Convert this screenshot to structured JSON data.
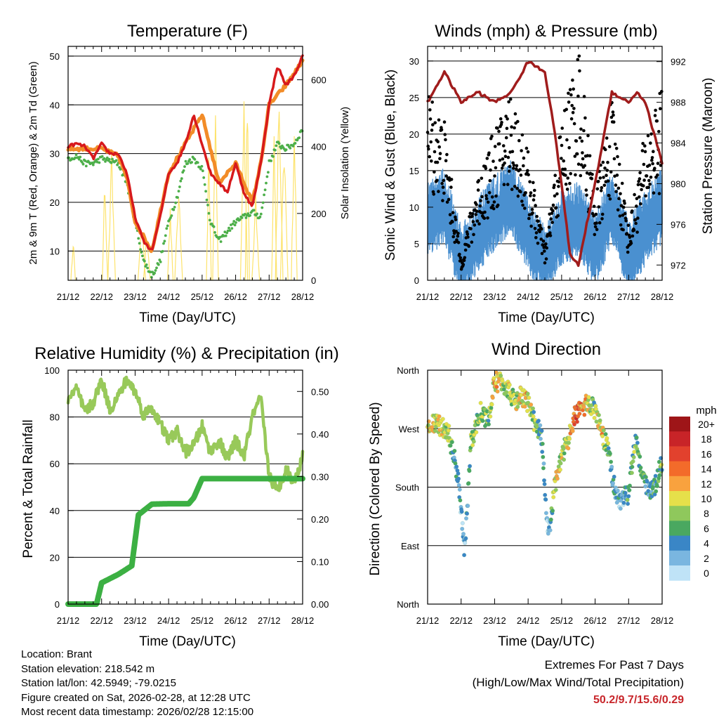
{
  "panels": {
    "temperature": {
      "title": "Temperature (F)",
      "ylabel_left": "2m & 9m T (Red, Orange) & 2m Td (Green)",
      "ylabel_right": "Solar Insolation (Yellow)",
      "xlabel": "Time (Day/UTC)"
    },
    "winds": {
      "title": "Winds (mph) & Pressure (mb)",
      "ylabel_left": "Sonic Wind & Gust (Blue, Black)",
      "ylabel_right": "Station Pressure (Maroon)",
      "xlabel": "Time (Day/UTC)"
    },
    "humidity": {
      "title": "Relative Humidity (%) & Precipitation (in)",
      "ylabel_left": "Percent & Total Rainfall",
      "xlabel": "Time (Day/UTC)"
    },
    "direction": {
      "title": "Wind Direction",
      "ylabel_left": "Direction (Colored By Speed)",
      "xlabel": "Time (Day/UTC)",
      "legend_title": "mph"
    }
  },
  "chart_data": [
    {
      "type": "line",
      "title": "Temperature (F)",
      "x_ticks": [
        "21/12",
        "22/12",
        "23/12",
        "24/12",
        "25/12",
        "26/12",
        "27/12",
        "28/12"
      ],
      "ylim": [
        4,
        52
      ],
      "y_ticks": [
        10,
        20,
        30,
        40,
        50
      ],
      "y2lim": [
        0,
        700
      ],
      "y2_ticks": [
        0,
        200,
        400,
        600
      ],
      "series": [
        {
          "name": "2m T",
          "color": "#d7191c",
          "days": [
            0,
            0.25,
            0.5,
            0.75,
            1,
            1.25,
            1.5,
            1.75,
            2,
            2.25,
            2.5,
            2.75,
            3,
            3.25,
            3.5,
            3.75,
            4,
            4.25,
            4.5,
            4.75,
            5,
            5.25,
            5.5,
            5.75,
            6,
            6.25,
            6.5,
            6.75,
            7
          ],
          "values": [
            31.5,
            32,
            31.5,
            29,
            32,
            30,
            30,
            26,
            17,
            12,
            10,
            17,
            26,
            28,
            32,
            38,
            32,
            26,
            24,
            22,
            28,
            22,
            19,
            28,
            40,
            48,
            44,
            46,
            50
          ]
        },
        {
          "name": "9m T",
          "color": "#f28c28",
          "days": [
            0,
            0.5,
            1,
            1.5,
            1.75,
            2,
            2.5,
            3,
            3.5,
            4,
            4.5,
            5,
            5.5,
            5.75,
            6,
            6.5,
            7
          ],
          "values": [
            31,
            31,
            31,
            29.5,
            25,
            16,
            10,
            26,
            32,
            38,
            24,
            28,
            20,
            28,
            40,
            44,
            49
          ]
        },
        {
          "name": "2m Td",
          "color": "#4daf4a",
          "days": [
            0,
            0.25,
            0.5,
            0.75,
            1,
            1.25,
            1.5,
            1.75,
            2,
            2.25,
            2.5,
            2.75,
            3,
            3.25,
            3.5,
            3.75,
            4,
            4.25,
            4.5,
            4.75,
            5,
            5.25,
            5.5,
            5.75,
            6,
            6.25,
            6.5,
            6.75,
            7
          ],
          "values": [
            29,
            29.5,
            28,
            28,
            29,
            28.5,
            28,
            24,
            16,
            8,
            5,
            8,
            16,
            21,
            28,
            29,
            27,
            16,
            12,
            14,
            16,
            17,
            18,
            17,
            28,
            32,
            31,
            32,
            35
          ]
        },
        {
          "name": "Solar Insolation",
          "color": "#fde36c",
          "axis": "right",
          "days": [
            0.2,
            0.7,
            1.3,
            1.8,
            2.3,
            2.8,
            3.3,
            3.8,
            4.3,
            4.8,
            5.3,
            5.8,
            6.3,
            6.8
          ],
          "values": [
            150,
            0,
            380,
            0,
            200,
            0,
            310,
            0,
            490,
            0,
            630,
            0,
            520,
            0
          ]
        }
      ]
    },
    {
      "type": "scatter",
      "title": "Winds (mph) & Pressure (mb)",
      "x_ticks": [
        "21/12",
        "22/12",
        "23/12",
        "24/12",
        "25/12",
        "26/12",
        "27/12",
        "28/12"
      ],
      "ylim": [
        0,
        32
      ],
      "y_ticks": [
        0,
        5,
        10,
        15,
        20,
        25,
        30
      ],
      "y2lim": [
        970.5,
        993.5
      ],
      "y2_ticks": [
        972,
        976,
        980,
        984,
        988,
        992
      ],
      "series": [
        {
          "name": "Sonic Wind",
          "color": "#4a90d0",
          "days": [
            0,
            0.5,
            1,
            1.5,
            2,
            2.5,
            3,
            3.5,
            4,
            4.5,
            5,
            5.5,
            6,
            6.5,
            7
          ],
          "values": [
            9,
            11,
            3,
            7,
            10,
            12,
            7,
            3,
            8,
            9,
            5,
            11,
            4,
            8,
            11
          ]
        },
        {
          "name": "Gust",
          "color": "#000000",
          "days": [
            0,
            0.5,
            1,
            1.5,
            2,
            2.5,
            3,
            3.5,
            4,
            4.5,
            5,
            5.5,
            6,
            6.5,
            7
          ],
          "values": [
            18,
            15,
            2,
            10,
            14,
            18,
            12,
            3,
            15,
            22,
            8,
            17,
            5,
            14,
            18
          ]
        },
        {
          "name": "Station Pressure",
          "color": "#a01c1c",
          "axis": "right",
          "days": [
            0,
            0.5,
            1,
            1.5,
            2,
            2.5,
            3,
            3.5,
            3.75,
            4,
            4.25,
            4.5,
            5,
            5.5,
            6,
            6.25,
            6.5,
            7
          ],
          "values": [
            988,
            991,
            988,
            989,
            988,
            989,
            992,
            991,
            986,
            980,
            973,
            972,
            980,
            989,
            988,
            989,
            988,
            982
          ]
        }
      ]
    },
    {
      "type": "line",
      "title": "Relative Humidity (%) & Precipitation (in)",
      "x_ticks": [
        "21/12",
        "22/12",
        "23/12",
        "24/12",
        "25/12",
        "26/12",
        "27/12",
        "28/12"
      ],
      "ylim": [
        0,
        100
      ],
      "y_ticks": [
        0,
        20,
        40,
        60,
        80,
        100
      ],
      "y2lim": [
        0,
        0.55
      ],
      "y2_ticks": [
        "0.00",
        "0.10",
        "0.20",
        "0.30",
        "0.40",
        "0.50"
      ],
      "series": [
        {
          "name": "Relative Humidity",
          "color": "#98c95a",
          "days": [
            0,
            0.25,
            0.5,
            0.75,
            1,
            1.25,
            1.5,
            1.75,
            2,
            2.25,
            2.5,
            2.75,
            3,
            3.25,
            3.5,
            3.75,
            4,
            4.25,
            4.5,
            4.75,
            5,
            5.25,
            5.5,
            5.75,
            6,
            6.25,
            6.5,
            6.75,
            7
          ],
          "values": [
            88,
            92,
            82,
            86,
            96,
            83,
            89,
            96,
            91,
            81,
            84,
            77,
            70,
            74,
            65,
            68,
            76,
            65,
            70,
            62,
            70,
            63,
            80,
            88,
            55,
            48,
            58,
            52,
            63
          ]
        },
        {
          "name": "Total Precipitation",
          "color": "#3cb043",
          "axis": "right",
          "days": [
            0,
            0.85,
            1,
            1.5,
            1.9,
            2.1,
            2.5,
            3,
            3.6,
            3.75,
            4,
            4.5,
            5,
            5.5,
            6,
            7
          ],
          "values": [
            0,
            0,
            0.05,
            0.07,
            0.09,
            0.21,
            0.235,
            0.236,
            0.236,
            0.25,
            0.295,
            0.295,
            0.295,
            0.295,
            0.295,
            0.295
          ]
        }
      ]
    },
    {
      "type": "scatter",
      "title": "Wind Direction",
      "x_ticks": [
        "21/12",
        "22/12",
        "23/12",
        "24/12",
        "25/12",
        "26/12",
        "27/12",
        "28/12"
      ],
      "y_categories": [
        "North",
        "East",
        "South",
        "West",
        "North"
      ],
      "ylim_deg": [
        0,
        360
      ],
      "legend": {
        "title": "mph",
        "labels": [
          "20+",
          "18",
          "16",
          "14",
          "12",
          "10",
          "8",
          "6",
          "4",
          "2",
          "0"
        ],
        "colors": [
          "#9e1518",
          "#c82428",
          "#e2412d",
          "#f36b2a",
          "#f9a23e",
          "#e6e04a",
          "#8fc85c",
          "#4aa860",
          "#3a86c6",
          "#7ab6e0",
          "#bfe3f7"
        ]
      },
      "series": [
        {
          "name": "Direction",
          "days": [
            0,
            0.3,
            0.6,
            0.9,
            1.1,
            1.3,
            1.6,
            1.8,
            2,
            2.2,
            2.4,
            2.6,
            2.8,
            3,
            3.2,
            3.4,
            3.6,
            3.8,
            4,
            4.2,
            4.4,
            4.6,
            4.8,
            5,
            5.2,
            5.4,
            5.6,
            5.8,
            6,
            6.2,
            6.4,
            6.6,
            6.8,
            7
          ],
          "direction_deg": [
            280,
            275,
            268,
            200,
            80,
            250,
            300,
            280,
            340,
            345,
            330,
            310,
            320,
            310,
            280,
            260,
            100,
            180,
            230,
            250,
            290,
            300,
            310,
            300,
            260,
            240,
            170,
            160,
            170,
            260,
            200,
            170,
            185,
            220
          ],
          "speed_mph": [
            12,
            12,
            9,
            4,
            2,
            8,
            9,
            8,
            12,
            10,
            10,
            9,
            12,
            12,
            8,
            6,
            2,
            12,
            10,
            10,
            16,
            14,
            10,
            8,
            12,
            8,
            4,
            4,
            6,
            8,
            8,
            4,
            6,
            8
          ]
        }
      ]
    }
  ],
  "info": {
    "location": "Location: Brant",
    "elevation": "Station elevation: 218.542 m",
    "latlon": "Station lat/lon: 42.5949; -79.0215",
    "created": "Figure created on Sat, 2026-02-28, at 12:28 UTC",
    "recent": "Most recent data timestamp: 2026/02/28 12:15:00"
  },
  "extremes": {
    "title": "Extremes For Past 7 Days",
    "subtitle": "(High/Low/Max Wind/Total Precipitation)",
    "values": "50.2/9.7/15.6/0.29",
    "color": "#c8262b"
  }
}
